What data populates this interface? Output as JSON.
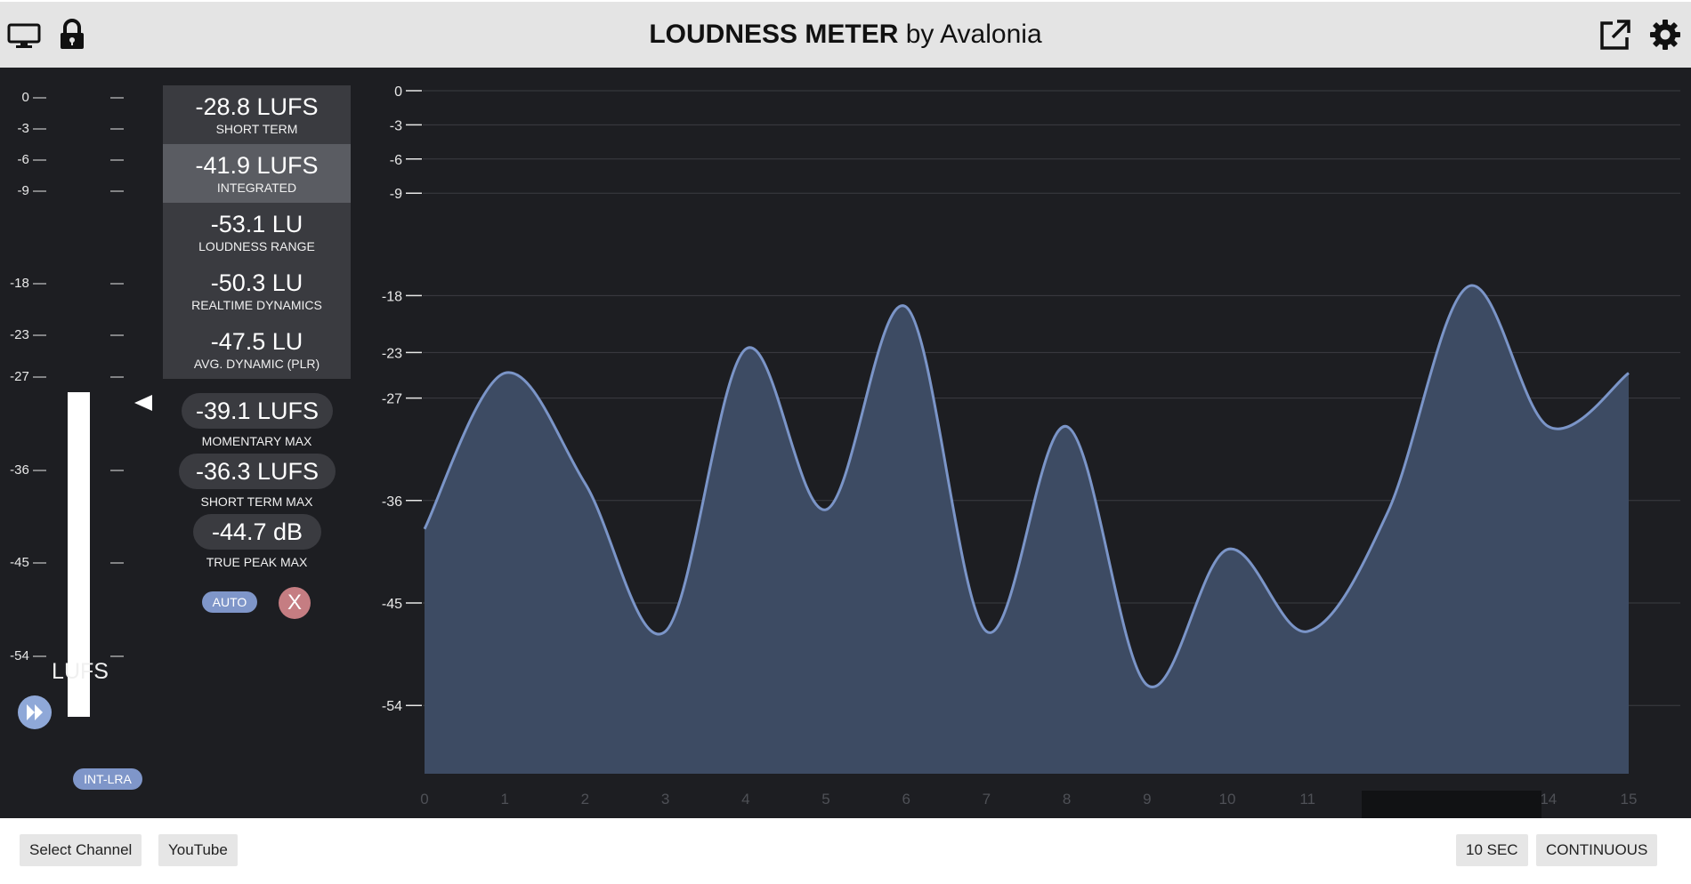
{
  "header": {
    "title_bold": "LOUDNESS METER",
    "title_rest": " by Avalonia",
    "icons": [
      "monitor-icon",
      "lock-icon",
      "external-link-icon",
      "gear-icon"
    ]
  },
  "meter": {
    "scale": [
      "0",
      "-3",
      "-6",
      "-9",
      "-18",
      "-23",
      "-27",
      "-36",
      "-45",
      "-54"
    ],
    "unit": "LUFS",
    "int_lra": "INT-LRA",
    "level_lufs": -28.5
  },
  "stats": [
    {
      "value": "-28.8 LUFS",
      "label": "SHORT TERM"
    },
    {
      "value": "-41.9 LUFS",
      "label": "INTEGRATED"
    },
    {
      "value": "-53.1 LU",
      "label": "LOUDNESS RANGE"
    },
    {
      "value": "-50.3 LU",
      "label": "REALTIME DYNAMICS"
    },
    {
      "value": "-47.5 LU",
      "label": "AVG. DYNAMIC (PLR)"
    }
  ],
  "max": [
    {
      "value": "-39.1 LUFS",
      "label": "MOMENTARY MAX"
    },
    {
      "value": "-36.3 LUFS",
      "label": "SHORT TERM MAX"
    },
    {
      "value": "-44.7 dB",
      "label": "TRUE PEAK MAX"
    }
  ],
  "controls": {
    "auto": "AUTO",
    "close": "X"
  },
  "chart_data": {
    "type": "area",
    "x": [
      0,
      1,
      2,
      3,
      4,
      5,
      6,
      7,
      8,
      9,
      10,
      11,
      12,
      13,
      14,
      15
    ],
    "x_tick_labels": [
      "0",
      "1",
      "2",
      "3",
      "4",
      "5",
      "6",
      "7",
      "8",
      "9",
      "10",
      "11",
      "",
      "",
      "14",
      "15"
    ],
    "y_ticks": [
      0,
      -3,
      -6,
      -9,
      -18,
      -23,
      -27,
      -36,
      -45,
      -54
    ],
    "ylim": [
      -60,
      0
    ],
    "values": [
      -38.5,
      -24.8,
      -34.5,
      -47.5,
      -22.7,
      -36.8,
      -19.0,
      -47.5,
      -29.5,
      -52.2,
      -40.3,
      -47.5,
      -37.0,
      -17.2,
      -29.5,
      -24.8
    ],
    "line_color": "#7b95c8",
    "fill_color": "#3d4b63",
    "grid": true
  },
  "bottom": {
    "select_channel": "Select Channel",
    "youtube": "YouTube",
    "ten_sec": "10 SEC",
    "continuous": "CONTINUOUS"
  }
}
